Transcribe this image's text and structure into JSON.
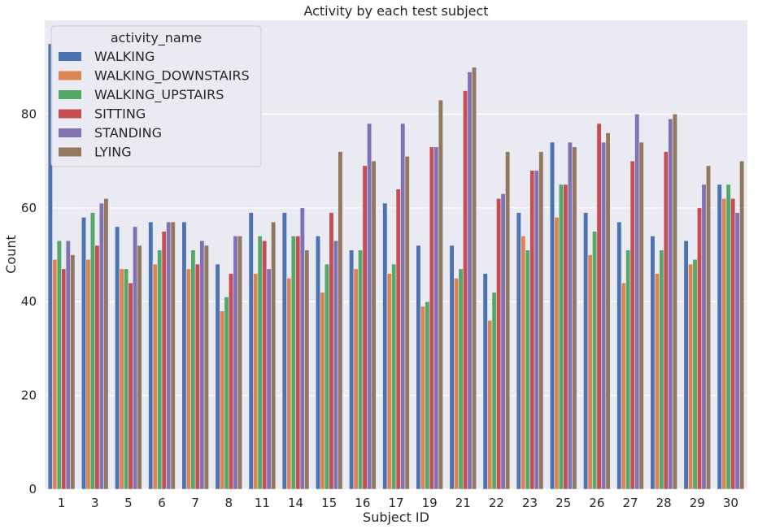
{
  "chart_data": {
    "type": "bar",
    "title": "Activity by each test subject",
    "xlabel": "Subject ID",
    "ylabel": "Count",
    "ylim": [
      0,
      100
    ],
    "yticks": [
      0,
      20,
      40,
      60,
      80
    ],
    "grid": true,
    "legend_title": "activity_name",
    "legend_placement": "top-left",
    "categories": [
      "1",
      "3",
      "5",
      "6",
      "7",
      "8",
      "11",
      "14",
      "15",
      "16",
      "17",
      "19",
      "21",
      "22",
      "23",
      "25",
      "26",
      "27",
      "28",
      "29",
      "30"
    ],
    "series": [
      {
        "name": "WALKING",
        "color": "#4c72b0",
        "values": [
          95,
          58,
          56,
          57,
          57,
          48,
          59,
          59,
          54,
          51,
          61,
          52,
          52,
          46,
          59,
          74,
          59,
          57,
          54,
          53,
          65
        ]
      },
      {
        "name": "WALKING_DOWNSTAIRS",
        "color": "#dd8452",
        "values": [
          49,
          49,
          47,
          48,
          47,
          38,
          46,
          45,
          42,
          47,
          46,
          39,
          45,
          36,
          54,
          58,
          50,
          44,
          46,
          48,
          62
        ]
      },
      {
        "name": "WALKING_UPSTAIRS",
        "color": "#55a868",
        "values": [
          53,
          59,
          47,
          51,
          51,
          41,
          54,
          54,
          48,
          51,
          48,
          40,
          47,
          42,
          51,
          65,
          55,
          51,
          51,
          49,
          65
        ]
      },
      {
        "name": "SITTING",
        "color": "#c44e52",
        "values": [
          47,
          52,
          44,
          55,
          48,
          46,
          53,
          54,
          59,
          69,
          64,
          73,
          85,
          62,
          68,
          65,
          78,
          70,
          72,
          60,
          62
        ]
      },
      {
        "name": "STANDING",
        "color": "#8172b3",
        "values": [
          53,
          61,
          56,
          57,
          53,
          54,
          47,
          60,
          53,
          78,
          78,
          73,
          89,
          63,
          68,
          74,
          74,
          80,
          79,
          65,
          59
        ]
      },
      {
        "name": "LYING",
        "color": "#937860",
        "values": [
          50,
          62,
          52,
          57,
          52,
          54,
          57,
          51,
          72,
          70,
          71,
          83,
          90,
          72,
          72,
          73,
          76,
          74,
          80,
          69,
          70
        ]
      }
    ]
  }
}
